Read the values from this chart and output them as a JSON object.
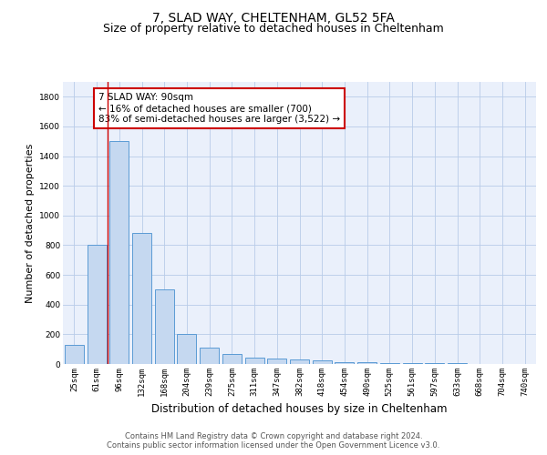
{
  "title": "7, SLAD WAY, CHELTENHAM, GL52 5FA",
  "subtitle": "Size of property relative to detached houses in Cheltenham",
  "xlabel": "Distribution of detached houses by size in Cheltenham",
  "ylabel": "Number of detached properties",
  "categories": [
    "25sqm",
    "61sqm",
    "96sqm",
    "132sqm",
    "168sqm",
    "204sqm",
    "239sqm",
    "275sqm",
    "311sqm",
    "347sqm",
    "382sqm",
    "418sqm",
    "454sqm",
    "490sqm",
    "525sqm",
    "561sqm",
    "597sqm",
    "633sqm",
    "668sqm",
    "704sqm",
    "740sqm"
  ],
  "values": [
    130,
    800,
    1500,
    880,
    500,
    205,
    110,
    70,
    45,
    35,
    30,
    25,
    15,
    10,
    8,
    5,
    5,
    4,
    3,
    2,
    2
  ],
  "bar_color": "#c5d8f0",
  "bar_edge_color": "#5b9bd5",
  "background_color": "#eaf0fb",
  "grid_color": "#b8cce8",
  "annotation_text": "7 SLAD WAY: 90sqm\n← 16% of detached houses are smaller (700)\n83% of semi-detached houses are larger (3,522) →",
  "annotation_box_color": "#ffffff",
  "annotation_box_edge": "#cc0000",
  "ylim": [
    0,
    1900
  ],
  "yticks": [
    0,
    200,
    400,
    600,
    800,
    1000,
    1200,
    1400,
    1600,
    1800
  ],
  "footer": "Contains HM Land Registry data © Crown copyright and database right 2024.\nContains public sector information licensed under the Open Government Licence v3.0.",
  "title_fontsize": 10,
  "subtitle_fontsize": 9,
  "ylabel_fontsize": 8,
  "xlabel_fontsize": 8.5,
  "tick_fontsize": 6.5,
  "annotation_fontsize": 7.5,
  "footer_fontsize": 6
}
